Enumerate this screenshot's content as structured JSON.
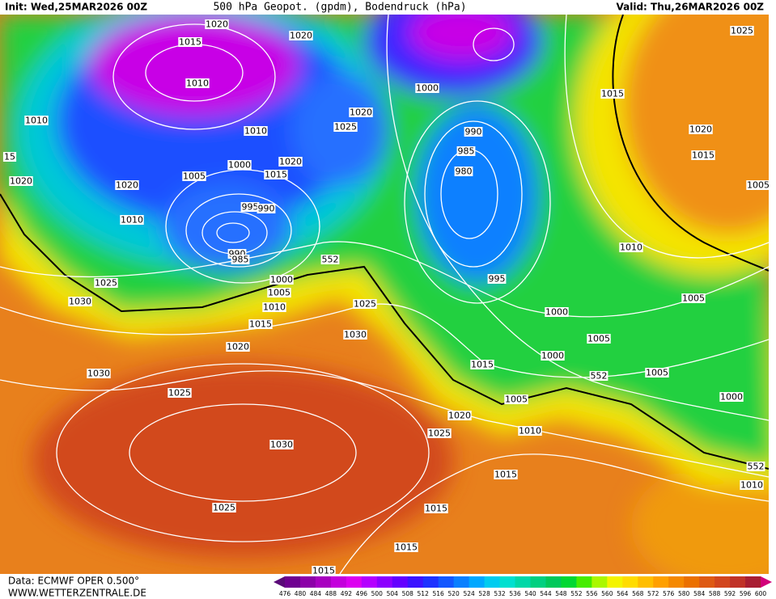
{
  "header": {
    "init": "Init: Wed,25MAR2026 00Z",
    "title": "500 hPa Geopot. (gpdm), Bodendruck (hPa)",
    "valid": "Valid: Thu,26MAR2026 00Z"
  },
  "footer": {
    "source": "Data: ECMWF OPER 0.500°",
    "site": "WWW.WETTERZENTRALE.DE"
  },
  "isobar_labels": [
    "1015",
    "1020",
    "1020",
    "1010",
    "1010",
    "15",
    "1020",
    "1020",
    "1005",
    "1000",
    "1015",
    "1020",
    "1010",
    "1025",
    "1020",
    "1000",
    "990",
    "985",
    "980",
    "1015",
    "1025",
    "1020",
    "1015",
    "1005",
    "1010",
    "995",
    "990",
    "990",
    "985",
    "552",
    "1000",
    "1005",
    "1010",
    "1015",
    "1025",
    "1030",
    "1025",
    "1020",
    "1030",
    "1030",
    "1025",
    "1030",
    "1025",
    "1020",
    "1025",
    "1010",
    "995",
    "1000",
    "1005",
    "1000",
    "1015",
    "552",
    "1005",
    "1005",
    "1000",
    "1005",
    "1010",
    "1015",
    "1015",
    "1015",
    "1015",
    "552",
    "1010"
  ],
  "colorbar": {
    "values": [
      476,
      480,
      484,
      488,
      492,
      496,
      500,
      504,
      508,
      512,
      516,
      520,
      524,
      528,
      532,
      536,
      540,
      544,
      548,
      552,
      556,
      560,
      564,
      568,
      572,
      576,
      580,
      584,
      588,
      592,
      596,
      600
    ],
    "colors": [
      "#5a0a78",
      "#6e0090",
      "#8c00a8",
      "#a800c0",
      "#c400dc",
      "#dc00f0",
      "#b400ff",
      "#8c00ff",
      "#6400ff",
      "#3c14ff",
      "#1e32ff",
      "#1458ff",
      "#0a80ff",
      "#00a8ff",
      "#00ccf0",
      "#00e0d0",
      "#00d8a8",
      "#00d080",
      "#00c85a",
      "#00d832",
      "#46ec00",
      "#aaf800",
      "#f4f400",
      "#ffdc00",
      "#ffbe00",
      "#ffa000",
      "#f58800",
      "#eb7000",
      "#de5a14",
      "#d2461e",
      "#c03228",
      "#a81e32",
      "#d2007a"
    ]
  }
}
